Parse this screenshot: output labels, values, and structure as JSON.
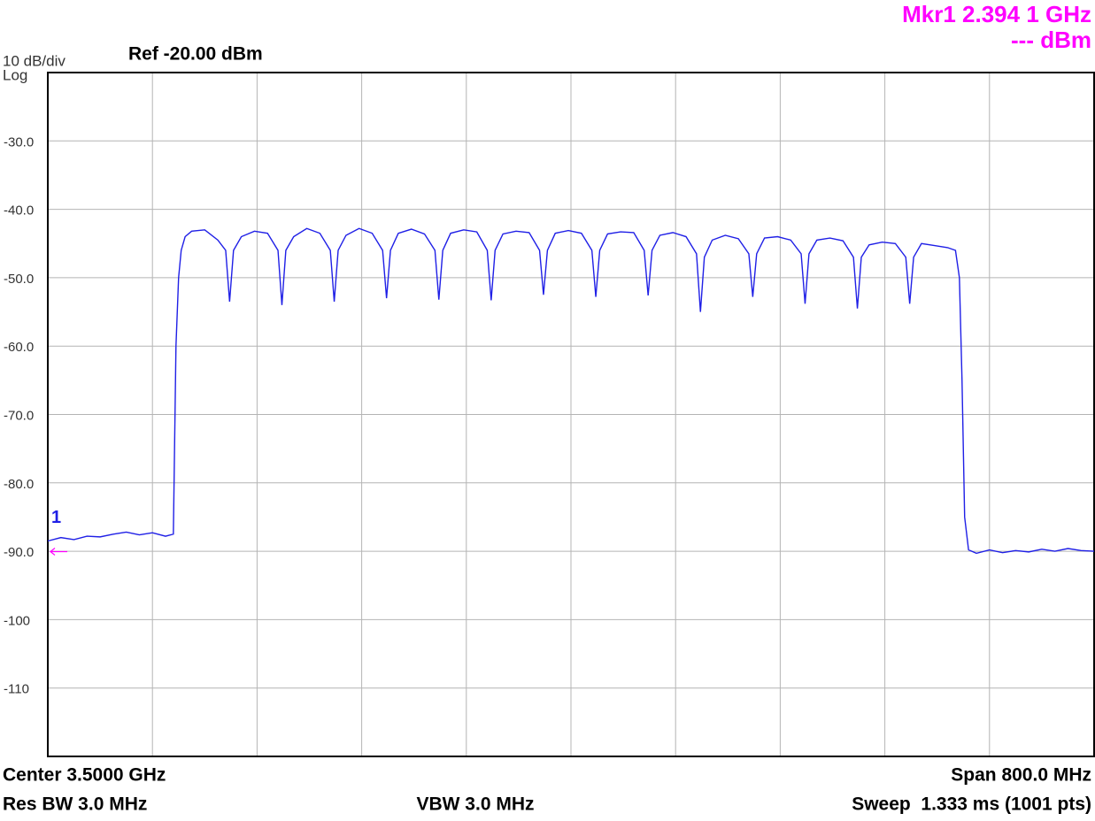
{
  "chart_data": {
    "type": "line",
    "scale_label": "10 dB/div",
    "scale_type": "Log",
    "reference": "Ref -20.00 dBm",
    "marker_readout": [
      "Mkr1 2.394 1 GHz",
      "--- dBm"
    ],
    "marker_label": "1",
    "center": "Center 3.5000 GHz",
    "span": "Span 800.0 MHz",
    "res_bw": "Res BW 3.0 MHz",
    "vbw": "VBW 3.0 MHz",
    "sweep": "Sweep  1.333 ms (1001 pts)",
    "color": "#1f1fe6",
    "marker_color": "#ff00ff",
    "grid": true,
    "xlim": [
      3.1,
      3.9
    ],
    "xticks": [
      3.18,
      3.26,
      3.34,
      3.42,
      3.5,
      3.58,
      3.66,
      3.74,
      3.82
    ],
    "ylim": [
      -120,
      -20
    ],
    "yticks": [
      {
        "value": -30,
        "label": "-30.0"
      },
      {
        "value": -40,
        "label": "-40.0"
      },
      {
        "value": -50,
        "label": "-50.0"
      },
      {
        "value": -60,
        "label": "-60.0"
      },
      {
        "value": -70,
        "label": "-70.0"
      },
      {
        "value": -80,
        "label": "-80.0"
      },
      {
        "value": -90,
        "label": "-90.0"
      },
      -100,
      -110
    ],
    "x": [
      3.1,
      3.11,
      3.12,
      3.13,
      3.14,
      3.15,
      3.16,
      3.17,
      3.18,
      3.19,
      3.196,
      3.198,
      3.2,
      3.202,
      3.205,
      3.21,
      3.22,
      3.23,
      3.236,
      3.239,
      3.242,
      3.248,
      3.258,
      3.268,
      3.276,
      3.279,
      3.282,
      3.288,
      3.298,
      3.308,
      3.316,
      3.319,
      3.322,
      3.328,
      3.338,
      3.348,
      3.356,
      3.359,
      3.362,
      3.368,
      3.378,
      3.388,
      3.396,
      3.399,
      3.402,
      3.408,
      3.418,
      3.428,
      3.436,
      3.439,
      3.442,
      3.448,
      3.458,
      3.468,
      3.476,
      3.479,
      3.482,
      3.488,
      3.498,
      3.508,
      3.516,
      3.519,
      3.522,
      3.528,
      3.538,
      3.548,
      3.556,
      3.559,
      3.562,
      3.568,
      3.578,
      3.588,
      3.596,
      3.599,
      3.602,
      3.608,
      3.618,
      3.628,
      3.636,
      3.639,
      3.642,
      3.648,
      3.658,
      3.668,
      3.676,
      3.679,
      3.682,
      3.688,
      3.698,
      3.708,
      3.716,
      3.719,
      3.722,
      3.728,
      3.738,
      3.748,
      3.756,
      3.759,
      3.762,
      3.768,
      3.778,
      3.788,
      3.794,
      3.797,
      3.799,
      3.801,
      3.804,
      3.81,
      3.82,
      3.83,
      3.84,
      3.85,
      3.86,
      3.87,
      3.88,
      3.89,
      3.9
    ],
    "values": [
      -88.5,
      -88,
      -88.3,
      -87.8,
      -87.9,
      -87.5,
      -87.2,
      -87.6,
      -87.3,
      -87.8,
      -87.5,
      -60,
      -50,
      -46,
      -44,
      -43.2,
      -43,
      -44.5,
      -46,
      -53.5,
      -46,
      -44,
      -43.2,
      -43.5,
      -46,
      -54,
      -46,
      -44,
      -42.8,
      -43.5,
      -46,
      -53.5,
      -46,
      -43.8,
      -42.8,
      -43.5,
      -46,
      -53,
      -46,
      -43.5,
      -42.9,
      -43.6,
      -46,
      -53.2,
      -46,
      -43.5,
      -43,
      -43.3,
      -46,
      -53.3,
      -46,
      -43.6,
      -43.2,
      -43.4,
      -46,
      -52.5,
      -46,
      -43.5,
      -43.1,
      -43.5,
      -46,
      -52.8,
      -46,
      -43.6,
      -43.3,
      -43.4,
      -46,
      -52.6,
      -46,
      -43.8,
      -43.4,
      -44,
      -46.5,
      -55,
      -47,
      -44.5,
      -43.8,
      -44.3,
      -46.5,
      -52.8,
      -46.5,
      -44.2,
      -44,
      -44.5,
      -46.5,
      -53.8,
      -46.5,
      -44.5,
      -44.2,
      -44.6,
      -47,
      -54.5,
      -47,
      -45.2,
      -44.8,
      -45,
      -47,
      -53.8,
      -47,
      -45,
      -45.3,
      -45.6,
      -46,
      -50,
      -65,
      -85,
      -89.8,
      -90.3,
      -89.8,
      -90.2,
      -89.9,
      -90.1,
      -89.7,
      -90,
      -89.6,
      -89.9,
      -90
    ]
  }
}
